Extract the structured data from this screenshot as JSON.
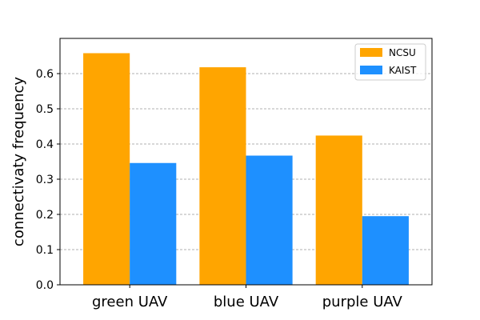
{
  "chart_data": {
    "type": "bar",
    "title": "",
    "xlabel": "",
    "ylabel": "connectivaty frequency",
    "categories": [
      "green UAV",
      "blue UAV",
      "purple UAV"
    ],
    "series": [
      {
        "name": "NCSU",
        "color": "#ffa500",
        "values": [
          0.658,
          0.618,
          0.424
        ]
      },
      {
        "name": "KAIST",
        "color": "#1e90ff",
        "values": [
          0.346,
          0.367,
          0.195
        ]
      }
    ],
    "ylim": [
      0,
      0.7
    ],
    "yticks": [
      0.0,
      0.1,
      0.2,
      0.3,
      0.4,
      0.5,
      0.6
    ],
    "ytick_labels": [
      "0.0",
      "0.1",
      "0.2",
      "0.3",
      "0.4",
      "0.5",
      "0.6"
    ],
    "grid": "y-dashed",
    "legend_position": "top-right"
  }
}
